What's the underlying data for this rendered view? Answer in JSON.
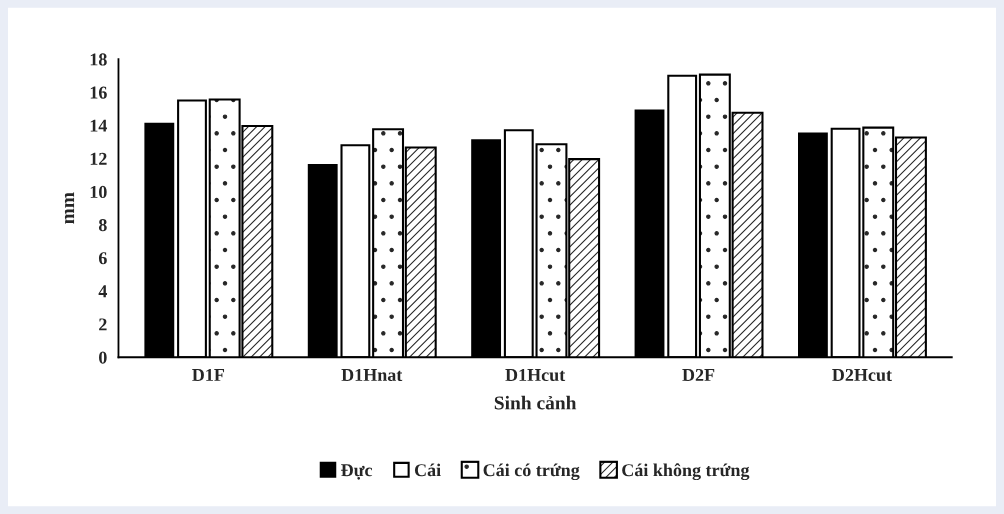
{
  "chart_data": {
    "type": "bar",
    "xlabel": "Sinh cảnh",
    "ylabel": "mm",
    "categories": [
      "D1F",
      "D1Hnat",
      "D1Hcut",
      "D2F",
      "D2Hcut"
    ],
    "series": [
      {
        "name": "Đực",
        "color": "#000000",
        "values": [
          14.1,
          11.6,
          13.1,
          14.9,
          13.5
        ]
      },
      {
        "name": "Cái",
        "color": "#ffffff",
        "values": [
          15.5,
          12.8,
          13.7,
          17.0,
          13.8
        ]
      },
      {
        "name": "Cái có trứng",
        "color": "#ffffff",
        "values": [
          15.5,
          13.7,
          12.8,
          17.0,
          13.8
        ]
      },
      {
        "name": "Cái không trứng",
        "color": "#ffffff",
        "values": [
          13.9,
          12.6,
          11.9,
          14.7,
          13.2
        ]
      }
    ],
    "ylim": [
      0,
      18
    ],
    "yticks": [
      0,
      2,
      4,
      6,
      8,
      10,
      12,
      14,
      16,
      18
    ],
    "grid": false,
    "legend": "bottom"
  }
}
